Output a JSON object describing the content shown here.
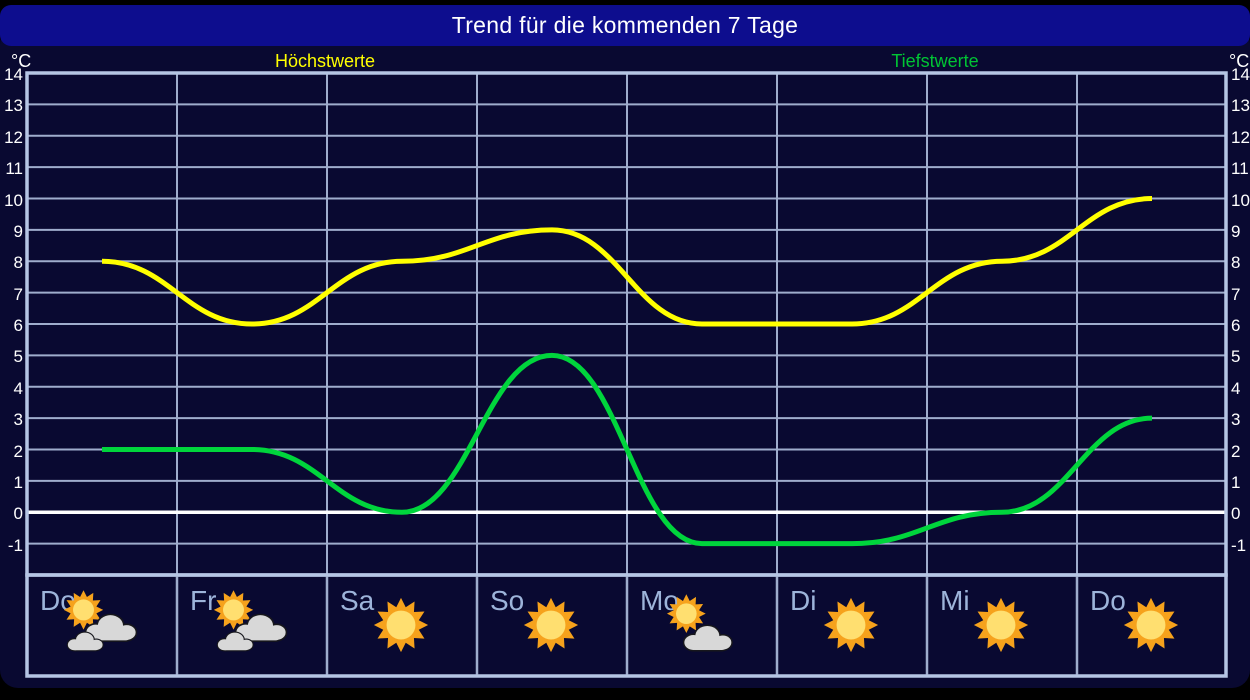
{
  "title": "Trend für die kommenden 7 Tage",
  "axis": {
    "unit": "°C",
    "ticks": [
      14,
      13,
      12,
      11,
      10,
      9,
      8,
      7,
      6,
      5,
      4,
      3,
      2,
      1,
      0,
      -1
    ]
  },
  "labels": {
    "high": "Höchstwerte",
    "low": "Tiefstwerte"
  },
  "colors": {
    "background": "#090931",
    "titlebar": "#0d0d8e",
    "grid": "#9fadcd",
    "border": "#b5c5e4",
    "zero_line": "#ffffff",
    "tick_text": "#ffffff",
    "day_text": "#9db4da",
    "high": "#ffff00",
    "low": "#00d53c"
  },
  "chart_data": {
    "type": "line",
    "title": "Trend für die kommenden 7 Tage",
    "categories": [
      "Do",
      "Fr",
      "Sa",
      "So",
      "Mo",
      "Di",
      "Mi",
      "Do"
    ],
    "series": [
      {
        "key": "high",
        "name": "Höchstwerte",
        "color": "#ffff00",
        "values": [
          8,
          6,
          8,
          9,
          6,
          6,
          8,
          10
        ]
      },
      {
        "key": "low",
        "name": "Tiefstwerte",
        "color": "#00d53c",
        "values": [
          2,
          2,
          0,
          5,
          -1,
          -1,
          0,
          3
        ]
      }
    ],
    "ylabel": "°C",
    "ylim": [
      -2,
      14
    ],
    "grid": true,
    "legend_position": "top",
    "days": [
      {
        "label": "Do",
        "icon": "sun-clouds"
      },
      {
        "label": "Fr",
        "icon": "sun-clouds"
      },
      {
        "label": "Sa",
        "icon": "sun"
      },
      {
        "label": "So",
        "icon": "sun"
      },
      {
        "label": "Mo",
        "icon": "sun-cloud"
      },
      {
        "label": "Di",
        "icon": "sun"
      },
      {
        "label": "Mi",
        "icon": "sun"
      },
      {
        "label": "Do",
        "icon": "sun"
      }
    ]
  }
}
